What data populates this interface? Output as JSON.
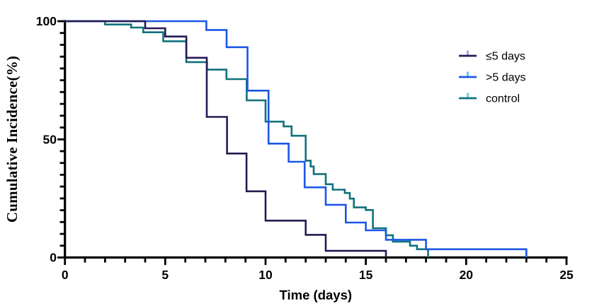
{
  "chart_data": {
    "type": "line",
    "subtype": "step-survival",
    "title": "",
    "xlabel": "Time (days)",
    "ylabel": "Cumulative Incidence(%)",
    "xlim": [
      0,
      25
    ],
    "ylim": [
      0,
      100
    ],
    "x_ticks": [
      "0",
      "5",
      "10",
      "15",
      "20",
      "25"
    ],
    "x_tick_values": [
      0,
      5,
      10,
      15,
      20,
      25
    ],
    "x_minor_step": 1,
    "y_ticks": [
      "0",
      "50",
      "100"
    ],
    "y_tick_values": [
      0,
      50,
      100
    ],
    "y_minor_step": 5,
    "grid": false,
    "background": "#ffffff",
    "axis_color": "#000000",
    "legend_position": "inside-right-top",
    "series": [
      {
        "key": "le5days",
        "name": "≤5 days",
        "color": "#261a54",
        "censor_tick_color": "#a293e0",
        "steps": [
          [
            0,
            100
          ],
          [
            4,
            97
          ],
          [
            5,
            93.5
          ],
          [
            6.05,
            84.5
          ],
          [
            7.07,
            59.5
          ],
          [
            8.08,
            44
          ],
          [
            9.05,
            28
          ],
          [
            10,
            15.6
          ],
          [
            12,
            9.6
          ],
          [
            13,
            2.8
          ],
          [
            16,
            0
          ]
        ]
      },
      {
        "key": "gt5days",
        "name": ">5 days",
        "color": "#1b57e6",
        "censor_tick_color": "#49c3f2",
        "steps": [
          [
            0,
            100
          ],
          [
            7.05,
            96.3
          ],
          [
            8.06,
            89
          ],
          [
            9.1,
            70.6
          ],
          [
            10.15,
            48.2
          ],
          [
            11.15,
            40.5
          ],
          [
            11.95,
            29.7
          ],
          [
            13,
            22.3
          ],
          [
            14,
            14.8
          ],
          [
            15,
            11.5
          ],
          [
            16,
            7.5
          ],
          [
            18,
            3.5
          ],
          [
            23,
            0
          ]
        ]
      },
      {
        "key": "control",
        "name": "control",
        "color": "#10727c",
        "censor_tick_color": "#59ced2",
        "steps": [
          [
            0,
            100
          ],
          [
            2,
            98.6
          ],
          [
            3.3,
            97.3
          ],
          [
            3.9,
            95.3
          ],
          [
            4.9,
            91.5
          ],
          [
            6.05,
            82.7
          ],
          [
            7.08,
            79.5
          ],
          [
            8.05,
            75.5
          ],
          [
            9.06,
            66.5
          ],
          [
            10,
            57.5
          ],
          [
            10.9,
            55.5
          ],
          [
            11.3,
            51.5
          ],
          [
            12,
            41
          ],
          [
            12.25,
            38.5
          ],
          [
            12.4,
            35.3
          ],
          [
            13,
            31
          ],
          [
            13.35,
            28.7
          ],
          [
            13.95,
            27.3
          ],
          [
            14.2,
            24.9
          ],
          [
            14.4,
            21.2
          ],
          [
            15,
            20.1
          ],
          [
            15.35,
            12.4
          ],
          [
            16,
            9.4
          ],
          [
            16.35,
            6.7
          ],
          [
            17.2,
            5
          ],
          [
            17.55,
            3.5
          ],
          [
            18.1,
            0
          ]
        ]
      }
    ]
  }
}
